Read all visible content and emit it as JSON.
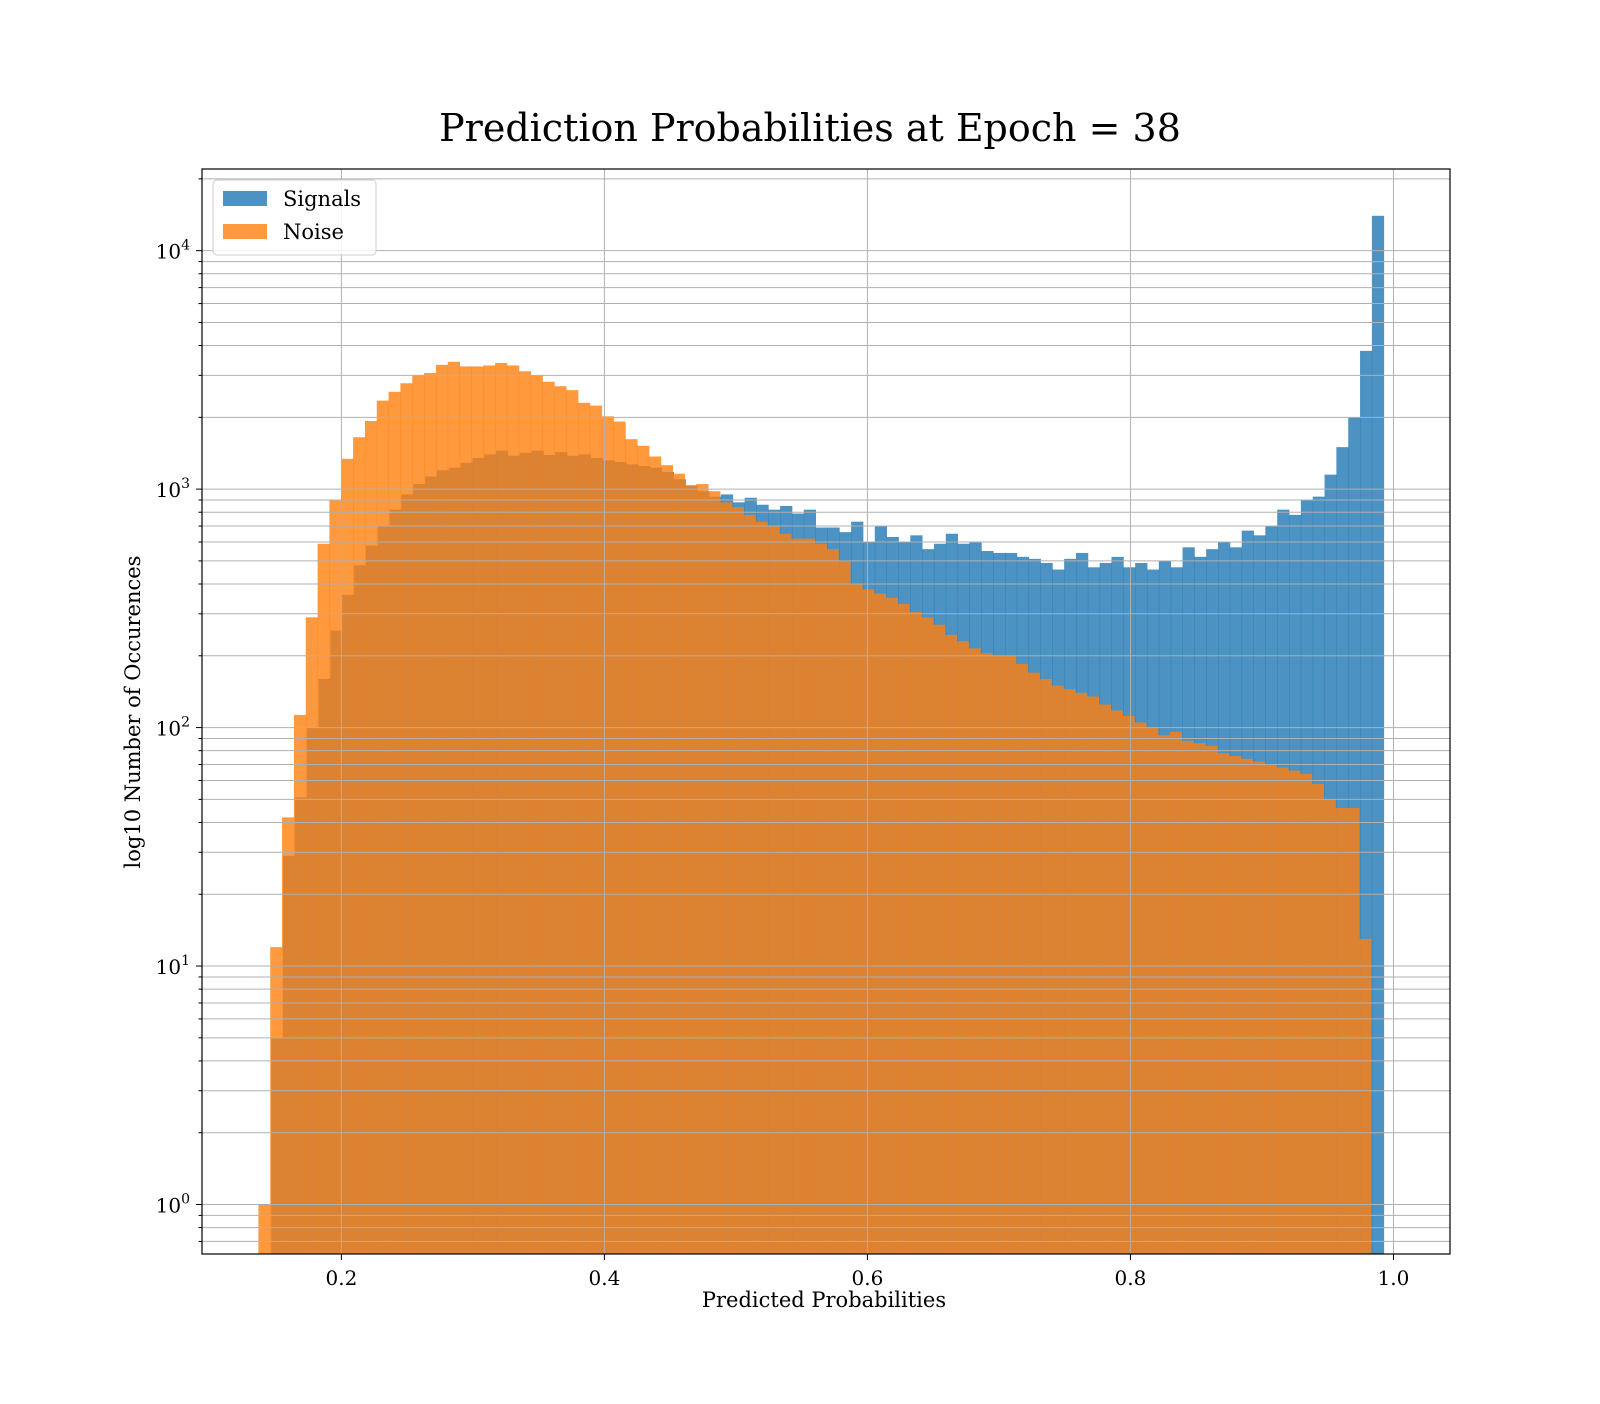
{
  "chart_data": {
    "type": "bar",
    "title": "Prediction Probabilities at Epoch = 38",
    "xlabel": "Predicted Probabilities",
    "ylabel": "log10 Number of Occurences",
    "xlim": [
      0.094,
      1.043
    ],
    "ylim": [
      0.62,
      22000
    ],
    "yscale": "log",
    "grid": true,
    "legend_position": "top-left",
    "x_ticks": [
      0.2,
      0.4,
      0.6,
      0.8,
      1.0
    ],
    "x_tick_labels": [
      "0.2",
      "0.4",
      "0.6",
      "0.8",
      "1.0"
    ],
    "y_ticks": [
      1,
      10,
      100,
      1000,
      10000
    ],
    "y_tick_labels": [
      {
        "base": "10",
        "exp": "0"
      },
      {
        "base": "10",
        "exp": "1"
      },
      {
        "base": "10",
        "exp": "2"
      },
      {
        "base": "10",
        "exp": "3"
      },
      {
        "base": "10",
        "exp": "4"
      }
    ],
    "series": [
      {
        "name": "Signals",
        "color": "#1f77b4",
        "bin_start": 0.1466,
        "bin_width": 0.009,
        "values": [
          5,
          29,
          51,
          100,
          160,
          255,
          360,
          480,
          580,
          700,
          820,
          950,
          1050,
          1130,
          1200,
          1230,
          1290,
          1350,
          1400,
          1450,
          1380,
          1420,
          1450,
          1390,
          1430,
          1380,
          1400,
          1350,
          1320,
          1300,
          1270,
          1250,
          1230,
          1180,
          1100,
          1030,
          980,
          930,
          950,
          880,
          920,
          860,
          820,
          850,
          790,
          820,
          690,
          690,
          660,
          730,
          600,
          700,
          630,
          600,
          640,
          560,
          590,
          650,
          590,
          600,
          550,
          540,
          540,
          520,
          510,
          490,
          460,
          510,
          540,
          470,
          490,
          520,
          470,
          490,
          460,
          500,
          470,
          570,
          520,
          560,
          600,
          570,
          670,
          640,
          700,
          820,
          780,
          900,
          930,
          1150,
          1500,
          2000,
          3800,
          14000
        ]
      },
      {
        "name": "Noise",
        "color": "#ff7f0e",
        "bin_start": 0.1369,
        "bin_width": 0.009,
        "values": [
          1,
          12,
          42,
          113,
          290,
          590,
          900,
          1340,
          1650,
          1930,
          2350,
          2560,
          2780,
          3000,
          3070,
          3320,
          3420,
          3270,
          3270,
          3300,
          3380,
          3300,
          3120,
          3000,
          2820,
          2700,
          2600,
          2300,
          2240,
          2020,
          1920,
          1620,
          1520,
          1370,
          1260,
          1160,
          1040,
          1050,
          980,
          880,
          840,
          780,
          730,
          700,
          650,
          620,
          620,
          590,
          560,
          500,
          400,
          380,
          365,
          350,
          330,
          305,
          290,
          270,
          245,
          230,
          215,
          205,
          200,
          200,
          185,
          170,
          160,
          150,
          145,
          140,
          135,
          125,
          118,
          112,
          105,
          100,
          93,
          96,
          88,
          86,
          84,
          78,
          76,
          74,
          72,
          70,
          68,
          66,
          64,
          58,
          50,
          46,
          46,
          13
        ]
      }
    ]
  }
}
